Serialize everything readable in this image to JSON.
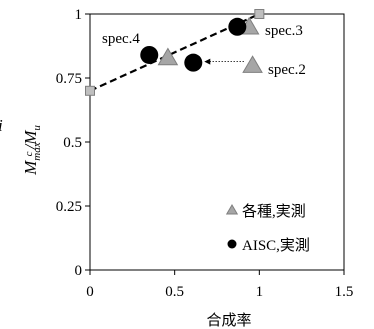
{
  "chart_data": {
    "type": "scatter",
    "xlabel": "合成率",
    "ylabel": {
      "main": "M",
      "sub1": "max",
      "sub2": "c",
      "slash": "/",
      "main2": "M",
      "sub3": "u"
    },
    "ylabel_fragment": "i",
    "xlim": [
      0,
      1.5
    ],
    "ylim": [
      0,
      1
    ],
    "x_ticks": [
      0,
      0.5,
      1,
      1.5
    ],
    "x_tick_labels": [
      "0",
      "0.5",
      "1",
      "1.5"
    ],
    "y_ticks": [
      0,
      0.25,
      0.5,
      0.75,
      1
    ],
    "y_tick_labels": [
      "0",
      "0.25",
      "0.5",
      "0.75",
      "1"
    ],
    "grid": false,
    "legend_position": "bottom-right",
    "series": [
      {
        "name": "各種,実測",
        "marker": "triangle",
        "color": "#a6a6a6",
        "points": [
          [
            0.46,
            0.83
          ],
          [
            0.94,
            0.95
          ],
          [
            0.96,
            0.8
          ]
        ]
      },
      {
        "name": "AISC,実測",
        "marker": "circle",
        "color": "#000000",
        "points": [
          [
            0.35,
            0.84
          ],
          [
            0.61,
            0.81
          ],
          [
            0.87,
            0.95
          ]
        ]
      },
      {
        "name": "",
        "marker": "square-dashed-line",
        "color": "#a6a6a6",
        "points": [
          [
            0,
            0.7
          ],
          [
            1,
            1.0
          ]
        ]
      }
    ],
    "annotations": [
      {
        "text": "spec.4"
      },
      {
        "text": "spec.3"
      },
      {
        "text": "spec.2"
      }
    ]
  }
}
